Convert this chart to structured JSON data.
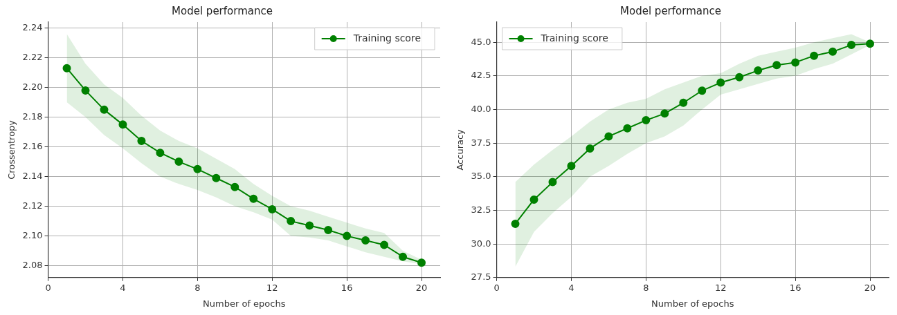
{
  "chart_data": [
    {
      "type": "line",
      "title": "Model performance",
      "xlabel": "Number of epochs",
      "ylabel": "Crossentropy",
      "x": [
        1,
        2,
        3,
        4,
        5,
        6,
        7,
        8,
        9,
        10,
        11,
        12,
        13,
        14,
        15,
        16,
        17,
        18,
        19,
        20
      ],
      "series": [
        {
          "name": "Training score",
          "color": "#008000",
          "values": [
            2.213,
            2.198,
            2.185,
            2.175,
            2.164,
            2.156,
            2.15,
            2.145,
            2.139,
            2.133,
            2.125,
            2.118,
            2.11,
            2.107,
            2.104,
            2.1,
            2.097,
            2.094,
            2.086,
            2.082
          ],
          "lower": [
            2.19,
            2.18,
            2.168,
            2.159,
            2.149,
            2.14,
            2.135,
            2.131,
            2.126,
            2.12,
            2.116,
            2.111,
            2.1,
            2.099,
            2.097,
            2.093,
            2.089,
            2.086,
            2.083,
            2.081
          ],
          "upper": [
            2.236,
            2.216,
            2.202,
            2.193,
            2.181,
            2.171,
            2.164,
            2.159,
            2.152,
            2.145,
            2.135,
            2.127,
            2.12,
            2.117,
            2.113,
            2.109,
            2.105,
            2.102,
            2.09,
            2.084
          ]
        }
      ],
      "xlim": [
        0,
        21
      ],
      "xticks": [
        0,
        4,
        8,
        12,
        16,
        20
      ],
      "ylim": [
        2.072,
        2.244
      ],
      "yticks": [
        {
          "value": 2.08,
          "label": "2.08"
        },
        {
          "value": 2.1,
          "label": "2.10"
        },
        {
          "value": 2.12,
          "label": "2.12"
        },
        {
          "value": 2.14,
          "label": "2.14"
        },
        {
          "value": 2.16,
          "label": "2.16"
        },
        {
          "value": 2.18,
          "label": "2.18"
        },
        {
          "value": 2.2,
          "label": "2.20"
        },
        {
          "value": 2.22,
          "label": "2.22"
        },
        {
          "value": 2.24,
          "label": "2.24"
        }
      ],
      "grid": true,
      "legend": "top right",
      "marker": "circle",
      "line_style": "solid"
    },
    {
      "type": "line",
      "title": "Model performance",
      "xlabel": "Number of epochs",
      "ylabel": "Accuracy",
      "x": [
        1,
        2,
        3,
        4,
        5,
        6,
        7,
        8,
        9,
        10,
        11,
        12,
        13,
        14,
        15,
        16,
        17,
        18,
        19,
        20
      ],
      "series": [
        {
          "name": "Training score",
          "color": "#008000",
          "values": [
            31.5,
            33.3,
            34.6,
            35.8,
            37.1,
            38.0,
            38.6,
            39.2,
            39.7,
            40.5,
            41.4,
            42.0,
            42.4,
            42.9,
            43.3,
            43.5,
            44.0,
            44.3,
            44.8,
            44.9
          ],
          "lower": [
            28.3,
            30.9,
            32.3,
            33.5,
            35.0,
            35.8,
            36.7,
            37.5,
            38.0,
            38.8,
            40.0,
            41.1,
            41.5,
            41.9,
            42.3,
            42.5,
            43.0,
            43.4,
            44.1,
            44.8
          ],
          "upper": [
            34.6,
            35.9,
            37.0,
            38.0,
            39.1,
            40.0,
            40.5,
            40.8,
            41.5,
            42.0,
            42.5,
            42.7,
            43.4,
            44.0,
            44.3,
            44.6,
            45.0,
            45.3,
            45.6,
            45.0
          ]
        }
      ],
      "xlim": [
        0,
        21
      ],
      "xticks": [
        0,
        4,
        8,
        12,
        16,
        20
      ],
      "ylim": [
        27.5,
        46.5
      ],
      "yticks": [
        {
          "value": 27.5,
          "label": "27.5"
        },
        {
          "value": 30,
          "label": "30.0"
        },
        {
          "value": 32.5,
          "label": "32.5"
        },
        {
          "value": 35,
          "label": "35.0"
        },
        {
          "value": 37.5,
          "label": "37.5"
        },
        {
          "value": 40,
          "label": "40.0"
        },
        {
          "value": 42.5,
          "label": "42.5"
        },
        {
          "value": 45,
          "label": "45.0"
        }
      ],
      "grid": true,
      "legend": "top left",
      "marker": "circle",
      "line_style": "solid"
    }
  ]
}
